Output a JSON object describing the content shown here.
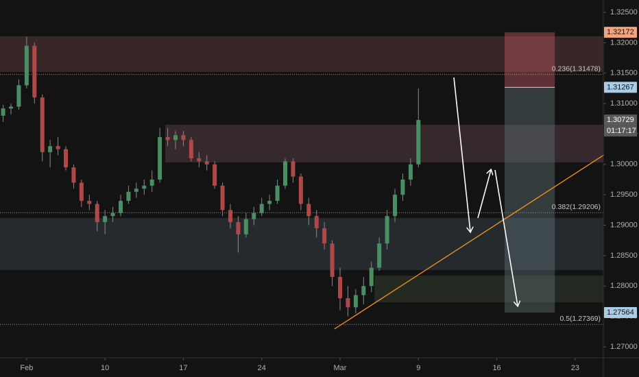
{
  "chart_data": {
    "type": "candlestick",
    "x": [
      -1.5,
      -1,
      -0.5,
      0,
      0.5,
      1,
      1.5,
      2,
      2.5,
      3,
      3.5,
      4,
      4.5,
      5,
      5.5,
      6,
      6.5,
      7,
      7.5,
      8,
      8.5,
      9,
      9.5,
      10,
      10.5,
      11,
      11.5,
      12,
      12.5,
      13,
      13.5,
      14,
      14.5,
      15,
      15.5,
      16,
      16.5,
      17,
      17.5,
      18,
      18.5,
      19,
      19.5,
      20,
      20.5,
      21,
      21.5,
      22,
      22.5,
      23,
      23.5,
      24,
      24.5,
      25
    ],
    "series": [
      {
        "up_color": "#4a8f63",
        "down_color": "#b04848",
        "wick_color": "#8a8a8a",
        "open": [
          1.308,
          1.3092,
          1.3095,
          1.313,
          1.3195,
          1.311,
          1.302,
          1.303,
          1.3025,
          1.2995,
          1.297,
          1.294,
          1.2935,
          1.2905,
          1.2915,
          1.292,
          1.294,
          1.2955,
          1.296,
          1.2965,
          1.2975,
          1.3045,
          1.304,
          1.3048,
          1.304,
          1.301,
          1.3005,
          1.3,
          1.2965,
          1.2925,
          1.2905,
          1.2885,
          1.291,
          1.292,
          1.2935,
          1.294,
          1.2965,
          1.3005,
          1.298,
          1.2935,
          1.2915,
          1.2895,
          1.287,
          1.2815,
          1.278,
          1.2765,
          1.2785,
          1.28,
          1.283,
          1.287,
          1.2915,
          1.295,
          1.2975,
          1.3
        ],
        "high": [
          1.3098,
          1.31,
          1.314,
          1.321,
          1.32,
          1.3115,
          1.304,
          1.3045,
          1.303,
          1.3,
          1.2975,
          1.295,
          1.294,
          1.2925,
          1.293,
          1.295,
          1.2965,
          1.297,
          1.2975,
          1.299,
          1.306,
          1.306,
          1.3055,
          1.3055,
          1.3045,
          1.302,
          1.3015,
          1.3005,
          1.297,
          1.2935,
          1.2915,
          1.292,
          1.293,
          1.2945,
          1.295,
          1.2975,
          1.301,
          1.301,
          1.2985,
          1.2945,
          1.2925,
          1.2905,
          1.2875,
          1.283,
          1.28,
          1.2795,
          1.2815,
          1.284,
          1.288,
          1.2925,
          1.296,
          1.2985,
          1.301,
          1.3125
        ],
        "low": [
          1.307,
          1.3082,
          1.309,
          1.3125,
          1.31,
          1.3005,
          1.2995,
          1.3015,
          1.299,
          1.296,
          1.293,
          1.2925,
          1.289,
          1.2885,
          1.2905,
          1.2915,
          1.2935,
          1.2945,
          1.295,
          1.2955,
          1.297,
          1.303,
          1.3025,
          1.303,
          1.3005,
          1.2995,
          1.299,
          1.296,
          1.2915,
          1.2895,
          1.2855,
          1.288,
          1.29,
          1.2915,
          1.2925,
          1.2935,
          1.296,
          1.297,
          1.2925,
          1.29,
          1.288,
          1.286,
          1.28,
          1.276,
          1.275,
          1.2755,
          1.277,
          1.279,
          1.2825,
          1.286,
          1.2905,
          1.294,
          1.2965,
          1.2995
        ],
        "close": [
          1.3092,
          1.3095,
          1.313,
          1.3195,
          1.311,
          1.302,
          1.303,
          1.3025,
          1.2995,
          1.297,
          1.294,
          1.2935,
          1.2905,
          1.2915,
          1.292,
          1.294,
          1.2955,
          1.296,
          1.2965,
          1.2975,
          1.3045,
          1.304,
          1.3048,
          1.304,
          1.301,
          1.3005,
          1.3,
          1.2965,
          1.2925,
          1.2905,
          1.2885,
          1.291,
          1.292,
          1.2935,
          1.294,
          1.2965,
          1.3005,
          1.298,
          1.2935,
          1.2915,
          1.2895,
          1.287,
          1.2815,
          1.278,
          1.2765,
          1.2785,
          1.28,
          1.283,
          1.287,
          1.2915,
          1.295,
          1.2975,
          1.3,
          1.3073
        ]
      }
    ],
    "xlim": [
      -1.7,
      36.8
    ],
    "xticks": [
      {
        "value": 0,
        "label": "Feb"
      },
      {
        "value": 5,
        "label": "10"
      },
      {
        "value": 10,
        "label": "17"
      },
      {
        "value": 15,
        "label": "24"
      },
      {
        "value": 20,
        "label": "Mar"
      },
      {
        "value": 25,
        "label": "9"
      },
      {
        "value": 30,
        "label": "16"
      },
      {
        "value": 35,
        "label": "23"
      }
    ],
    "ylim": [
      1.27,
      1.325
    ],
    "yticks": [
      {
        "value": 1.27,
        "label": "1.27000"
      },
      {
        "value": 1.275,
        "label": "1.27500"
      },
      {
        "value": 1.28,
        "label": "1.28000"
      },
      {
        "value": 1.285,
        "label": "1.28500"
      },
      {
        "value": 1.29,
        "label": "1.29000"
      },
      {
        "value": 1.295,
        "label": "1.29500"
      },
      {
        "value": 1.3,
        "label": "1.30000"
      },
      {
        "value": 1.305,
        "label": "1.30500"
      },
      {
        "value": 1.31,
        "label": "1.31000"
      },
      {
        "value": 1.315,
        "label": "1.31500"
      },
      {
        "value": 1.32,
        "label": "1.32000"
      },
      {
        "value": 1.325,
        "label": "1.32500"
      }
    ],
    "zones": [
      {
        "from": 1.32106,
        "to": 1.3152,
        "x0": -1.7,
        "x1": 36.8,
        "color": "rgba(120,72,72,0.38)"
      },
      {
        "from": 1.30652,
        "to": 1.30032,
        "x0": 8.84,
        "x1": 36.8,
        "color": "rgba(110,80,90,0.38)"
      },
      {
        "from": 1.29119,
        "to": 1.28262,
        "x0": -1.7,
        "x1": 36.8,
        "color": "rgba(60,72,82,0.45)"
      },
      {
        "from": 1.28172,
        "to": 1.27733,
        "x0": 22.2,
        "x1": 36.8,
        "color": "rgba(70,82,60,0.35)"
      }
    ],
    "fib_levels": [
      {
        "label": "0.236(1.31478)",
        "value": 1.31478
      },
      {
        "label": "0.382(1.29206)",
        "value": 1.29206
      },
      {
        "label": "0.5(1.27369)",
        "value": 1.27369
      }
    ],
    "position": {
      "entry": 1.31267,
      "stop": 1.32172,
      "target": 1.27564,
      "x0": 30.5,
      "x1": 33.7
    },
    "trendline": {
      "x": [
        19.64,
        36.84
      ],
      "y": [
        1.27293,
        1.30156
      ],
      "color": "#f7931a"
    },
    "price_labels": [
      {
        "value": 1.32172,
        "color": "#f0a580"
      },
      {
        "value": 1.31267,
        "color": "#a9cde6"
      },
      {
        "value": 1.30729,
        "color": "#5a5a5a"
      },
      {
        "value": 1.27564,
        "color": "#a9cde6"
      }
    ],
    "countdown": "01:17:17"
  }
}
